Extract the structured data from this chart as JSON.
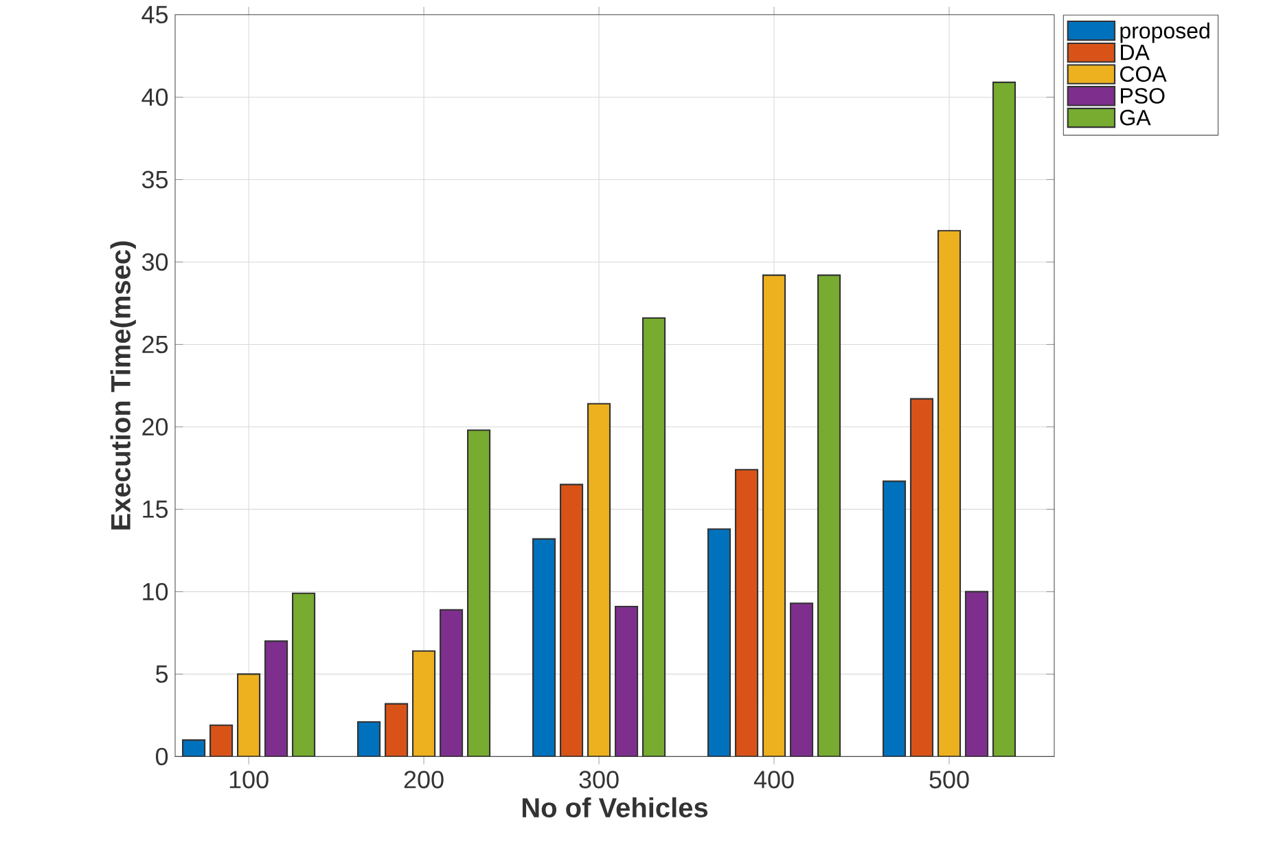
{
  "chart_data": {
    "type": "bar",
    "xlabel": "No of Vehicles",
    "ylabel": "Execution Time(msec)",
    "categories": [
      "100",
      "200",
      "300",
      "400",
      "500"
    ],
    "series": [
      {
        "name": "proposed",
        "color": "#0072bd",
        "values": [
          1,
          2.1,
          13.2,
          13.8,
          16.7
        ]
      },
      {
        "name": "DA",
        "color": "#d95319",
        "values": [
          1.9,
          3.2,
          16.5,
          17.4,
          21.7
        ]
      },
      {
        "name": "COA",
        "color": "#edb120",
        "values": [
          5,
          6.4,
          21.4,
          29.2,
          31.9
        ]
      },
      {
        "name": "PSO",
        "color": "#7e2f8e",
        "values": [
          7,
          8.9,
          9.1,
          9.3,
          10
        ]
      },
      {
        "name": "GA",
        "color": "#77ac30",
        "values": [
          9.9,
          19.8,
          26.6,
          29.2,
          40.9
        ]
      }
    ],
    "ylim": [
      0,
      45
    ],
    "yticks": [
      0,
      5,
      10,
      15,
      20,
      25,
      30,
      35,
      40,
      45
    ],
    "grid": true,
    "legend": "top right"
  }
}
